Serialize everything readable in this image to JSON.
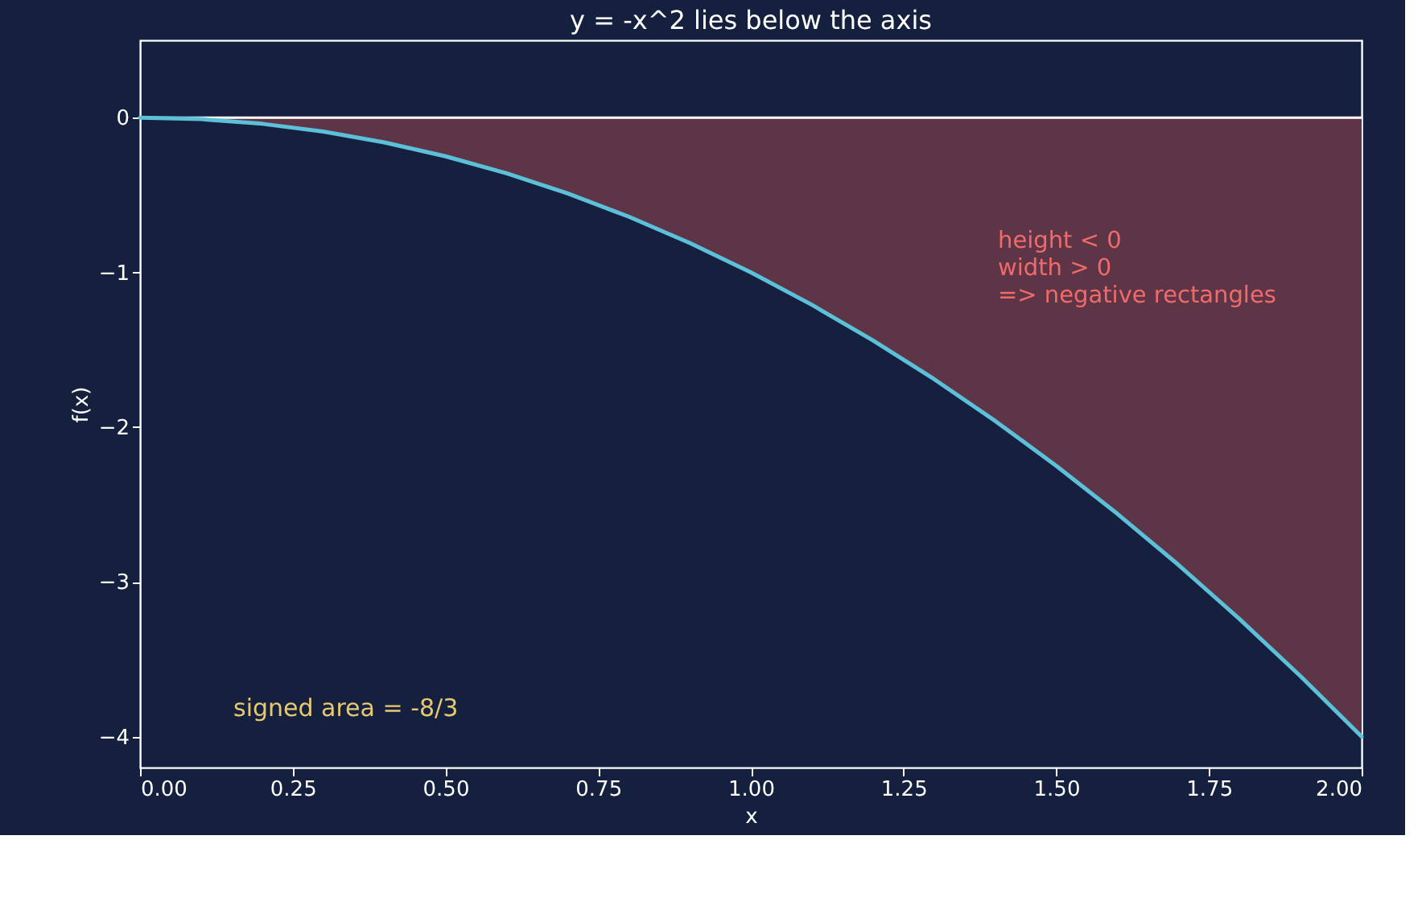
{
  "chart_data": {
    "type": "line",
    "title": "y = -x^2 lies below the axis",
    "xlabel": "x",
    "ylabel": "f(x)",
    "x": [
      0,
      0.1,
      0.2,
      0.3,
      0.4,
      0.5,
      0.6,
      0.7,
      0.8,
      0.9,
      1.0,
      1.1,
      1.2,
      1.3,
      1.4,
      1.5,
      1.6,
      1.7,
      1.8,
      1.9,
      2.0
    ],
    "series": [
      {
        "color": "#5bc0d8",
        "values": [
          0,
          -0.01,
          -0.04,
          -0.09,
          -0.16,
          -0.25,
          -0.36,
          -0.49,
          -0.64,
          -0.81,
          -1.0,
          -1.21,
          -1.44,
          -1.69,
          -1.96,
          -2.25,
          -2.56,
          -2.89,
          -3.24,
          -3.61,
          -4.0
        ],
        "lower": [
          0,
          -0.01,
          -0.04,
          -0.09,
          -0.16,
          -0.25,
          -0.36,
          -0.49,
          -0.64,
          -0.81,
          -1.0,
          -1.21,
          -1.44,
          -1.69,
          -1.96,
          -2.25,
          -2.56,
          -2.89,
          -3.24,
          -3.61,
          -4.0
        ],
        "upper": [
          0,
          0,
          0,
          0,
          0,
          0,
          0,
          0,
          0,
          0,
          0,
          0,
          0,
          0,
          0,
          0,
          0,
          0,
          0,
          0,
          0
        ]
      }
    ],
    "xlim": [
      0,
      2
    ],
    "xticks": [
      {
        "value": 0,
        "label": "0.00"
      },
      {
        "value": 0.25,
        "label": "0.25"
      },
      {
        "value": 0.5,
        "label": "0.50"
      },
      {
        "value": 0.75,
        "label": "0.75"
      },
      {
        "value": 1,
        "label": "1.00"
      },
      {
        "value": 1.25,
        "label": "1.25"
      },
      {
        "value": 1.5,
        "label": "1.50"
      },
      {
        "value": 1.75,
        "label": "1.75"
      },
      {
        "value": 2,
        "label": "2.00"
      }
    ],
    "ylim": [
      -4.2,
      0.5
    ],
    "yticks": [
      {
        "value": -4,
        "label": "−4"
      },
      {
        "value": -3,
        "label": "−3"
      },
      {
        "value": -2,
        "label": "−2"
      },
      {
        "value": -1,
        "label": "−1"
      },
      0
    ],
    "ref_lines": [
      {
        "axis": "y",
        "value": 0,
        "color": "#ffffff"
      }
    ],
    "annotations": [
      "height < 0\nwidth > 0\n=> negative rectangles",
      "signed area = -8/3"
    ],
    "line_style": "solid"
  }
}
